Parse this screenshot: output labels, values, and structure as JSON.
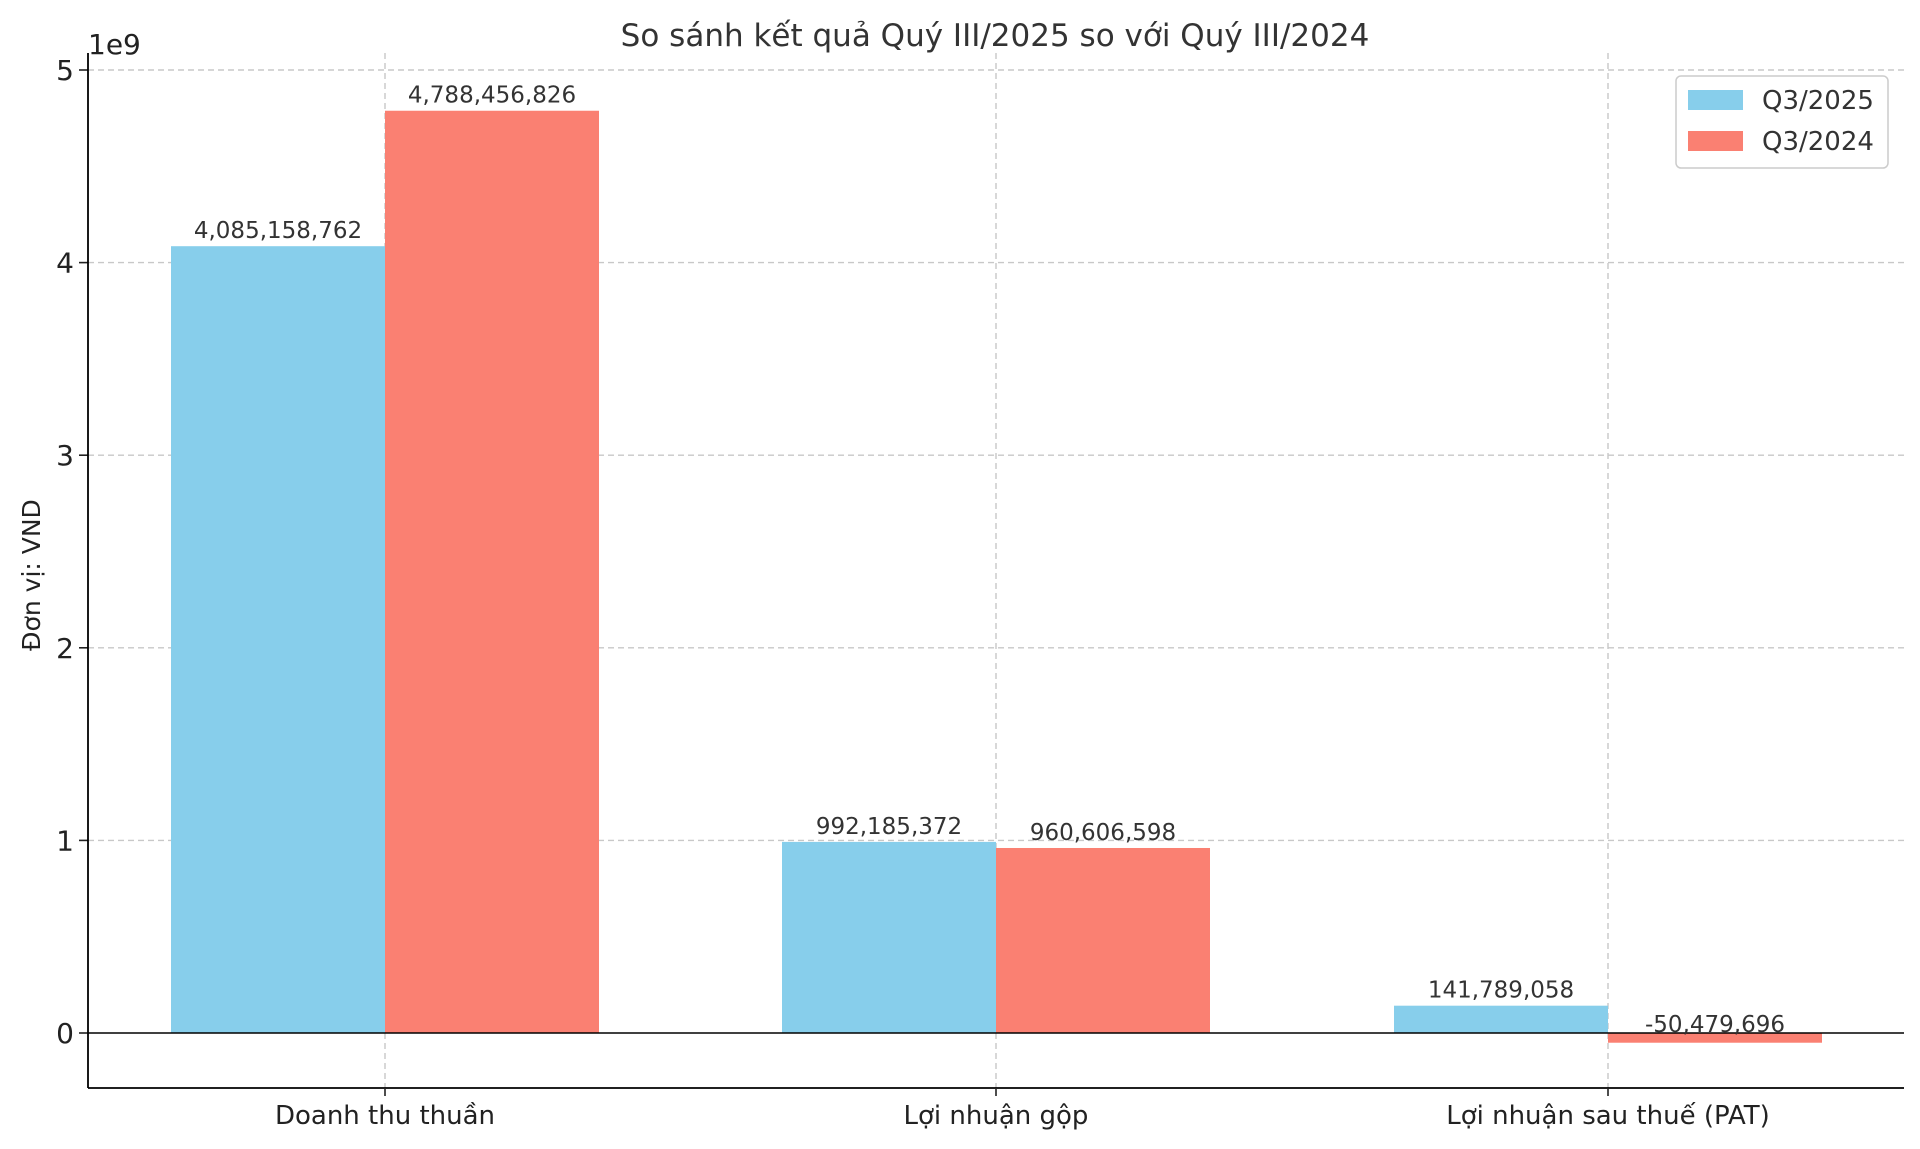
{
  "chart_data": {
    "type": "bar",
    "title": "So sánh kết quả Quý III/2025 so với Quý III/2024",
    "ylabel": "Đơn vị: VND",
    "xlabel": "",
    "y_scale_label": "1e9",
    "ylim": [
      -290000000,
      5000000000
    ],
    "yticks": [
      0,
      1000000000,
      2000000000,
      3000000000,
      4000000000,
      5000000000
    ],
    "ytick_labels": [
      "0",
      "1",
      "2",
      "3",
      "4",
      "5"
    ],
    "grid": true,
    "legend_position": "top-right",
    "categories": [
      "Doanh thu thuần",
      "Lợi nhuận gộp",
      "Lợi nhuận sau thuế (PAT)"
    ],
    "series": [
      {
        "name": "Q3/2025",
        "color": "#87ceeb",
        "values": [
          4085158762,
          992185372,
          141789058
        ],
        "labels": [
          "4,085,158,762",
          "992,185,372",
          "141,789,058"
        ]
      },
      {
        "name": "Q3/2024",
        "color": "#fa8072",
        "values": [
          4788456826,
          960606598,
          -50479696
        ],
        "labels": [
          "4,788,456,826",
          "960,606,598",
          "-50,479,696"
        ]
      }
    ]
  }
}
